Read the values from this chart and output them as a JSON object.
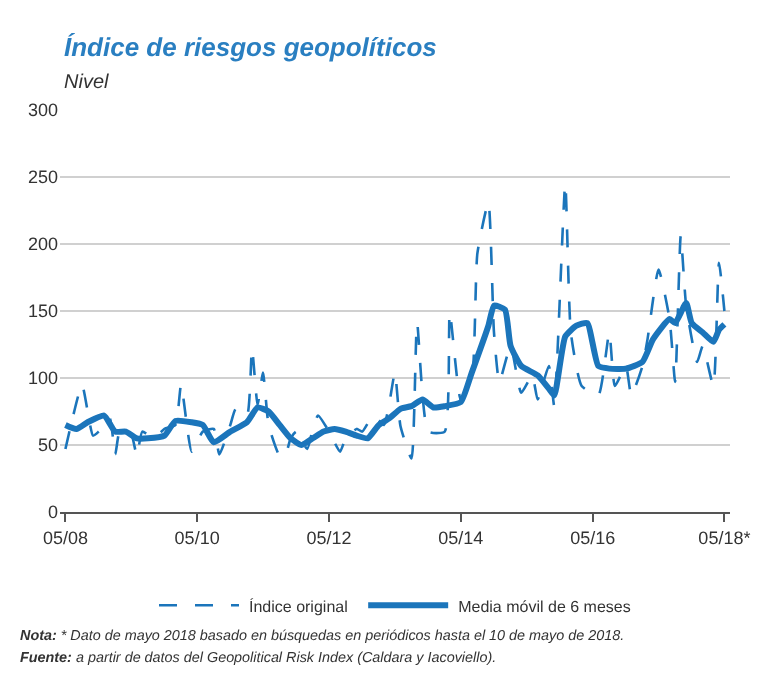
{
  "chart_data": {
    "type": "line",
    "title": "Índice de riesgos geopolíticos",
    "subtitle": "Nivel",
    "annotations": [
      "Nota: * Dato de mayo 2018 basado en búsquedas en periódicos hasta el 10 de mayo de 2018.",
      "Fuente: a partir de datos del Geopolitical Risk Index (Caldara y Iacoviello)."
    ],
    "series": [
      {
        "name": "Índice original",
        "color": "#1b75bb",
        "line_style": "dashed",
        "x": [
          "2008-05",
          "2008-06",
          "2008-08",
          "2008-10",
          "2008-11",
          "2009-01",
          "2009-02",
          "2009-03",
          "2009-05",
          "2009-06",
          "2009-07",
          "2009-09",
          "2009-11",
          "2010-01",
          "2010-02",
          "2010-04",
          "2010-06",
          "2010-08",
          "2010-09",
          "2010-11",
          "2010-12",
          "2011-02",
          "2011-03",
          "2011-04",
          "2011-05",
          "2011-06",
          "2011-08",
          "2011-09",
          "2011-10",
          "2011-11",
          "2012-01",
          "2012-02",
          "2012-03",
          "2012-05",
          "2012-07",
          "2012-08",
          "2012-10",
          "2012-11",
          "2013-01",
          "2013-03",
          "2013-04",
          "2013-05",
          "2013-06",
          "2013-08",
          "2013-09",
          "2013-11",
          "2014-02",
          "2014-03",
          "2014-05",
          "2014-07",
          "2014-08",
          "2014-10",
          "2014-11",
          "2014-12",
          "2015-02",
          "2015-04",
          "2015-06",
          "2015-07",
          "2015-09",
          "2015-10",
          "2015-12",
          "2016-01",
          "2016-03",
          "2016-06",
          "2016-08",
          "2016-09",
          "2016-11",
          "2016-12",
          "2017-02",
          "2017-03",
          "2017-05",
          "2017-07",
          "2017-08",
          "2017-09",
          "2017-10",
          "2017-12",
          "2018-01",
          "2018-03",
          "2018-04",
          "2018-05"
        ],
        "values": [
          47,
          65,
          95,
          57,
          60,
          70,
          43,
          62,
          58,
          42,
          60,
          55,
          62,
          65,
          95,
          45,
          60,
          62,
          43,
          65,
          77,
          72,
          122,
          80,
          104,
          65,
          42,
          42,
          55,
          60,
          47,
          62,
          72,
          60,
          45,
          55,
          62,
          60,
          72,
          65,
          82,
          104,
          64,
          40,
          141,
          60,
          60,
          149,
          84,
          99,
          193,
          231,
          134,
          97,
          124,
          89,
          102,
          84,
          109,
          79,
          245,
          134,
          94,
          87,
          134,
          94,
          109,
          87,
          109,
          129,
          181,
          144,
          97,
          206,
          154,
          112,
          124,
          94,
          186,
          150
        ]
      },
      {
        "name": "Media móvil de 6 meses",
        "color": "#1b75bb",
        "line_style": "solid",
        "x": [
          "2008-05",
          "2008-07",
          "2008-09",
          "2008-12",
          "2009-02",
          "2009-04",
          "2009-06",
          "2009-08",
          "2009-11",
          "2010-01",
          "2010-04",
          "2010-06",
          "2010-08",
          "2010-11",
          "2011-02",
          "2011-04",
          "2011-06",
          "2011-08",
          "2011-10",
          "2011-12",
          "2012-02",
          "2012-04",
          "2012-06",
          "2012-08",
          "2012-10",
          "2012-12",
          "2013-02",
          "2013-04",
          "2013-06",
          "2013-08",
          "2013-10",
          "2013-12",
          "2014-02",
          "2014-05",
          "2014-07",
          "2014-10",
          "2014-11",
          "2015-01",
          "2015-02",
          "2015-04",
          "2015-07",
          "2015-09",
          "2015-10",
          "2015-12",
          "2016-02",
          "2016-04",
          "2016-06",
          "2016-08",
          "2016-11",
          "2017-02",
          "2017-04",
          "2017-07",
          "2017-08",
          "2017-10",
          "2017-11",
          "2018-01",
          "2018-03",
          "2018-04",
          "2018-05"
        ],
        "values": [
          65,
          62,
          67,
          72,
          60,
          60,
          55,
          55,
          57,
          68,
          67,
          65,
          52,
          60,
          67,
          78,
          75,
          65,
          55,
          50,
          55,
          60,
          62,
          60,
          57,
          55,
          65,
          70,
          77,
          79,
          84,
          78,
          79,
          82,
          104,
          139,
          154,
          151,
          124,
          109,
          102,
          92,
          87,
          131,
          139,
          141,
          109,
          107,
          107,
          112,
          129,
          144,
          141,
          156,
          141,
          134,
          127,
          136,
          140
        ]
      }
    ],
    "xlim": [
      "2008-04",
      "2018-06"
    ],
    "xticks": [
      {
        "value": "2008-05",
        "label": "05/08"
      },
      {
        "value": "2010-05",
        "label": "05/10"
      },
      {
        "value": "2012-05",
        "label": "05/12"
      },
      {
        "value": "2014-05",
        "label": "05/14"
      },
      {
        "value": "2016-05",
        "label": "05/16"
      },
      {
        "value": "2018-05",
        "label": "05/18*"
      }
    ],
    "ylim": [
      0,
      300
    ],
    "yticks": [
      0,
      50,
      100,
      150,
      200,
      250,
      300
    ],
    "grid": "y",
    "legend": "bottom",
    "marker": "none"
  }
}
